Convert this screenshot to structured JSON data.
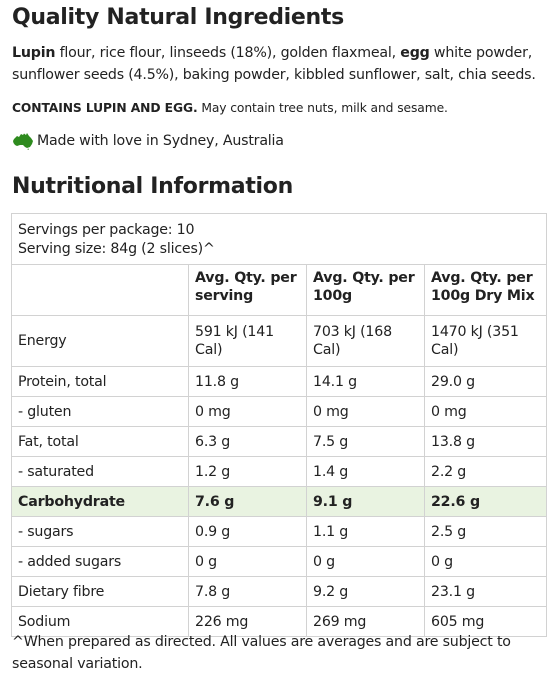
{
  "ingredients": {
    "title": "Quality Natural Ingredients",
    "segments": [
      {
        "text": "Lupin",
        "bold": true
      },
      {
        "text": " flour, rice flour, linseeds (18%), golden flaxmeal, ",
        "bold": false
      },
      {
        "text": "egg",
        "bold": true
      },
      {
        "text": " white powder, sunflower seeds (4.5%), baking powder, kibbled sunflower, salt, chia seeds.",
        "bold": false
      }
    ],
    "allergen_bold": "CONTAINS LUPIN AND EGG.",
    "allergen_rest": " May contain tree nuts, milk and sesame.",
    "origin_icon": "australia-map-icon",
    "origin_color": "#2e8b1e",
    "origin_text": "Made with love in Sydney, Australia"
  },
  "nutrition": {
    "title": "Nutritional Information",
    "servings_per_package": "Servings per package: 10",
    "serving_size": "Serving size: 84g (2 slices)^",
    "columns": [
      "",
      "Avg. Qty. per serving",
      "Avg. Qty. per 100g",
      "Avg. Qty. per 100g Dry Mix"
    ],
    "highlight_color": "#e9f3e1",
    "rows": [
      {
        "name": "Energy",
        "serving": "591 kJ (141 Cal)",
        "per100": "703 kJ (168 Cal)",
        "dry": "1470 kJ (351 Cal)",
        "highlight": false
      },
      {
        "name": "Protein, total",
        "serving": "11.8 g",
        "per100": "14.1 g",
        "dry": "29.0 g",
        "highlight": false
      },
      {
        "name": "- gluten",
        "serving": "0 mg",
        "per100": "0 mg",
        "dry": "0 mg",
        "highlight": false
      },
      {
        "name": "Fat, total",
        "serving": "6.3 g",
        "per100": "7.5 g",
        "dry": "13.8 g",
        "highlight": false
      },
      {
        "name": "- saturated",
        "serving": "1.2 g",
        "per100": "1.4 g",
        "dry": "2.2 g",
        "highlight": false
      },
      {
        "name": "Carbohydrate",
        "serving": "7.6 g",
        "per100": "9.1 g",
        "dry": "22.6 g",
        "highlight": true
      },
      {
        "name": "- sugars",
        "serving": "0.9 g",
        "per100": "1.1 g",
        "dry": "2.5 g",
        "highlight": false
      },
      {
        "name": "- added sugars",
        "serving": "0 g",
        "per100": "0 g",
        "dry": "0 g",
        "highlight": false
      },
      {
        "name": "Dietary fibre",
        "serving": "7.8 g",
        "per100": "9.2 g",
        "dry": "23.1 g",
        "highlight": false
      },
      {
        "name": "Sodium",
        "serving": "226 mg",
        "per100": "269 mg",
        "dry": "605 mg",
        "highlight": false
      }
    ],
    "footnote": "^When prepared as directed. All values are averages and are subject to seasonal variation."
  }
}
